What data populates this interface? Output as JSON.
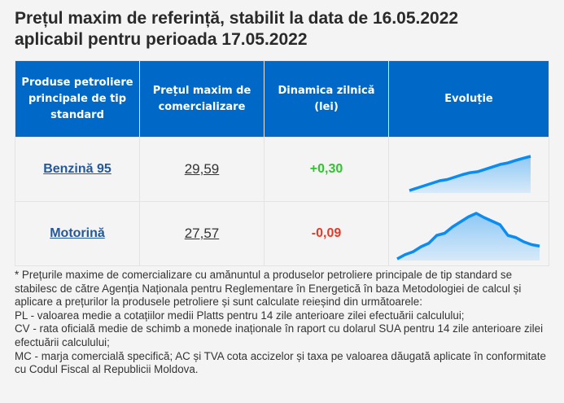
{
  "title_line1": "Prețul maxim de referință, stabilit la data de 16.05.2022",
  "title_line2": "aplicabil pentru perioada 17.05.2022",
  "headers": [
    "Produse petroliere principale de tip standard",
    "Prețul maxim de comercializare",
    "Dinamica zilnică (lei)",
    "Evoluție"
  ],
  "rows": [
    {
      "product": "Benzină 95",
      "price": "29,59",
      "change": "+0,30",
      "trend": [
        0,
        1,
        2,
        3,
        4,
        4.5,
        5.5,
        6.5,
        7.3,
        7.7,
        8.7,
        9.7,
        10.7,
        11.3,
        12.3,
        13.2,
        14
      ]
    },
    {
      "product": "Motorină",
      "price": "27,57",
      "change": "-0,09",
      "trend": [
        0,
        6,
        10,
        17,
        22,
        33,
        36,
        45,
        52,
        59,
        64,
        58,
        53,
        48,
        33,
        30,
        24,
        20,
        18
      ]
    }
  ],
  "colors": {
    "header_bg": "#0069c8",
    "positive": "#2ec52e",
    "negative": "#e23a2a",
    "sparkline": "#0a8cf0"
  },
  "notes": [
    "* Prețurile maxime de comercializare cu amănuntul a produselor petroliere principale de tip standard se stabilesc de către Agenția Naționala pentru Reglementare în Energetică în baza Metodologiei de calcul și aplicare a prețurilor la produsele petroliere și sunt calculate reieșind din următoarele:",
    "PL - valoarea medie a cotațiilor medii Platts pentru 14 zile anterioare zilei efectuării calculului;",
    "CV - rata oficială medie de schimb a monede inaționale în raport cu dolarul SUA pentru 14 zile anterioare zilei efectuării calculului;",
    "MC - marja comercială specifică; AC și TVA cota accizelor și taxa pe valoarea dăugată aplicate în conformitate cu Codul Fiscal al Republicii Moldova."
  ]
}
